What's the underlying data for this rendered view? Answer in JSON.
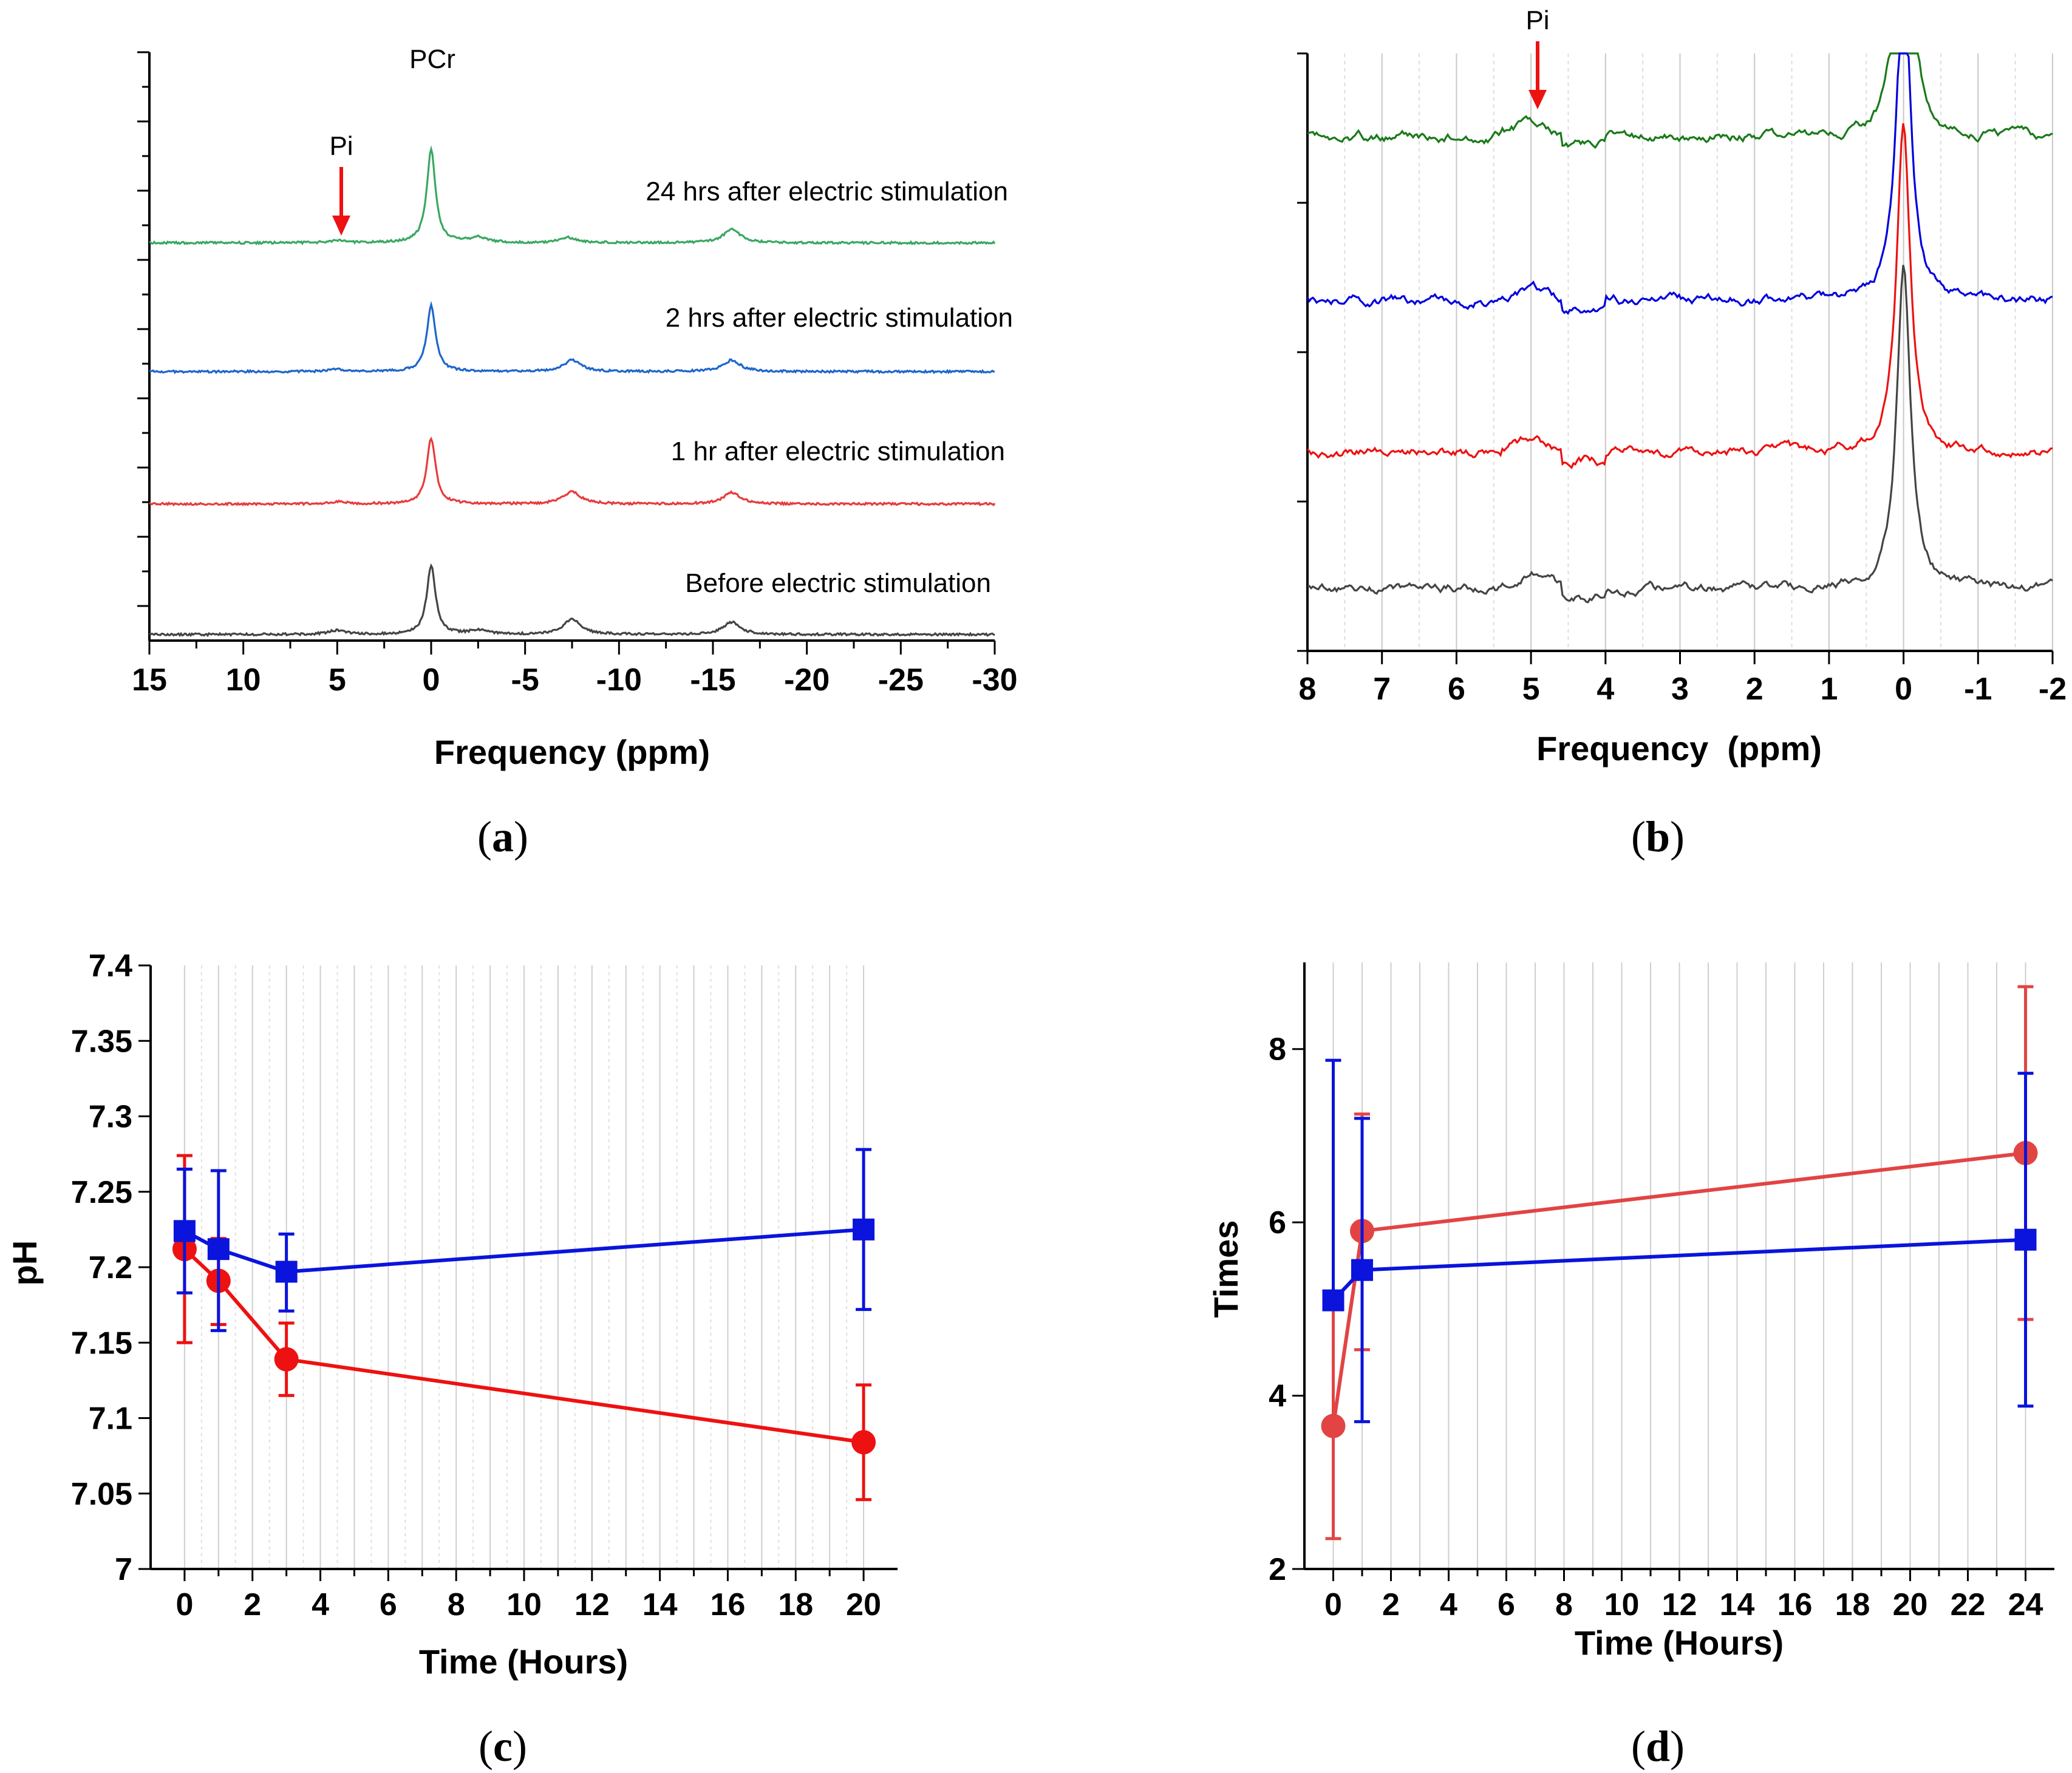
{
  "chart_data": [
    {
      "panel": "a",
      "type": "line",
      "panel_label": "a",
      "xlabel": "Frequency (ppm)",
      "xlim": [
        15,
        -30
      ],
      "xticks": [
        "15",
        "10",
        "5",
        "0",
        "-5",
        "-10",
        "-15",
        "-20",
        "-25",
        "-30"
      ],
      "annotations": {
        "pcr": "PCr",
        "pi": "Pi"
      },
      "series": [
        {
          "name": "24 hrs after electric stimulation",
          "color": "#3aa862",
          "peaks": [
            [
              0,
              9.0
            ],
            [
              -2.5,
              0.5
            ],
            [
              -7.3,
              0.5
            ],
            [
              -16,
              1.3
            ],
            [
              5,
              0.2
            ]
          ]
        },
        {
          "name": "2 hrs after electric stimulation",
          "color": "#1f66cc",
          "peaks": [
            [
              0,
              6.4
            ],
            [
              -7.5,
              1.1
            ],
            [
              -16,
              1.1
            ],
            [
              5,
              0.2
            ]
          ]
        },
        {
          "name": "1 hr after electric stimulation",
          "color": "#e63c3c",
          "peaks": [
            [
              0,
              6.4
            ],
            [
              -7.5,
              1.2
            ],
            [
              -16,
              1.1
            ],
            [
              5,
              0.2
            ]
          ]
        },
        {
          "name": "Before electric stimulation",
          "color": "#444444",
          "peaks": [
            [
              0,
              6.7
            ],
            [
              -7.5,
              1.5
            ],
            [
              -16,
              1.2
            ],
            [
              5,
              0.4
            ],
            [
              -2.5,
              0.4
            ]
          ]
        }
      ]
    },
    {
      "panel": "b",
      "type": "line",
      "panel_label": "b",
      "xlabel": "Frequency  (ppm)",
      "xlim": [
        8,
        -2
      ],
      "xticks": [
        "8",
        "7",
        "6",
        "5",
        "4",
        "3",
        "2",
        "1",
        "0",
        "-1",
        "-2"
      ],
      "annotations": {
        "pi": "Pi"
      },
      "series": [
        {
          "name": "24 hrs",
          "color": "#1a7a1a"
        },
        {
          "name": "2 hrs",
          "color": "#0000dd"
        },
        {
          "name": "1 hr",
          "color": "#ee1111"
        },
        {
          "name": "Before",
          "color": "#444444"
        }
      ]
    },
    {
      "panel": "c",
      "type": "line",
      "panel_label": "c",
      "xlabel": "Time (Hours)",
      "ylabel": "pH",
      "xlim": [
        -1,
        21
      ],
      "ylim": [
        7.0,
        7.4
      ],
      "xticks": [
        "0",
        "2",
        "4",
        "6",
        "8",
        "10",
        "12",
        "14",
        "16",
        "18",
        "20"
      ],
      "yticks": [
        "7",
        "7.05",
        "7.1",
        "7.15",
        "7.2",
        "7.25",
        "7.3",
        "7.35",
        "7.4"
      ],
      "series": [
        {
          "name": "blue squares",
          "color": "#0a14dc",
          "marker": "square",
          "x": [
            0,
            1,
            3,
            20
          ],
          "y": [
            7.224,
            7.212,
            7.197,
            7.225
          ],
          "err_hi": [
            7.265,
            7.264,
            7.222,
            7.278
          ],
          "err_lo": [
            7.183,
            7.158,
            7.171,
            7.172
          ]
        },
        {
          "name": "red circles",
          "color": "#ee1111",
          "marker": "circle",
          "x": [
            0,
            1,
            3,
            20
          ],
          "y": [
            7.212,
            7.191,
            7.139,
            7.084
          ],
          "err_hi": [
            7.274,
            7.219,
            7.163,
            7.122
          ],
          "err_lo": [
            7.15,
            7.162,
            7.115,
            7.046
          ]
        }
      ]
    },
    {
      "panel": "d",
      "type": "line",
      "panel_label": "d",
      "xlabel": "Time (Hours)",
      "ylabel": "Times",
      "xlim": [
        -1,
        25
      ],
      "ylim": [
        2,
        9
      ],
      "xticks": [
        "0",
        "2",
        "4",
        "6",
        "8",
        "10",
        "12",
        "14",
        "16",
        "18",
        "20",
        "22",
        "24"
      ],
      "yticks": [
        "2",
        "4",
        "6",
        "8"
      ],
      "series": [
        {
          "name": "blue squares",
          "color": "#0a14dc",
          "marker": "square",
          "x": [
            0,
            1,
            24
          ],
          "y": [
            5.1,
            5.45,
            5.8
          ],
          "err_hi": [
            7.87,
            7.2,
            7.72
          ],
          "err_lo": [
            5.0,
            3.7,
            3.88
          ]
        },
        {
          "name": "red circles",
          "color": "#e24444",
          "marker": "circle",
          "x": [
            0,
            1,
            24
          ],
          "y": [
            3.65,
            5.9,
            6.8
          ],
          "err_hi": [
            5.0,
            7.25,
            8.72
          ],
          "err_lo": [
            2.35,
            4.53,
            4.88
          ]
        }
      ]
    }
  ]
}
